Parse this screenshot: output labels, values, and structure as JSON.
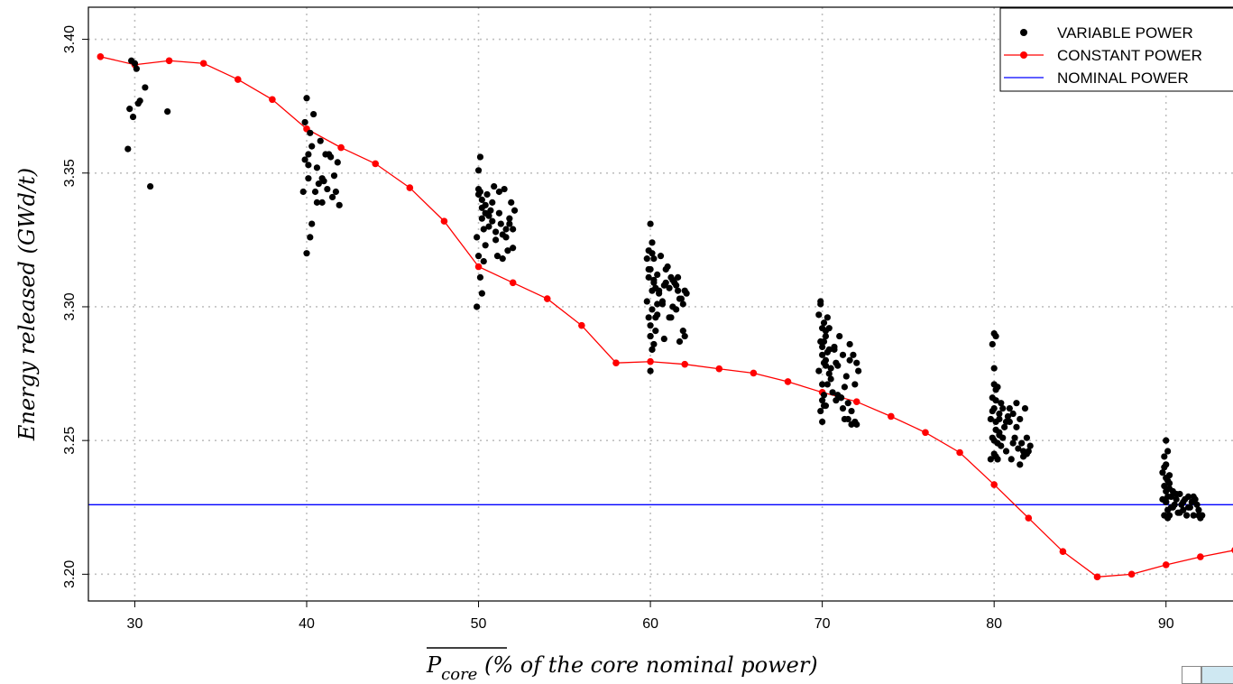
{
  "chart_data": {
    "type": "scatter",
    "xlabel": "P_core (% of the core nominal power)",
    "xlabel_main": "P",
    "xlabel_sub": "core",
    "xlabel_rest": " (% of the core nominal power)",
    "ylabel": "Energy released (GWd/t)",
    "xlim": [
      27.3,
      95
    ],
    "ylim": [
      3.19,
      3.412
    ],
    "x_ticks": [
      30,
      40,
      50,
      60,
      70,
      80,
      90
    ],
    "y_ticks": [
      3.2,
      3.25,
      3.3,
      3.35,
      3.4
    ],
    "x_tick_labels": [
      "30",
      "40",
      "50",
      "60",
      "70",
      "80",
      "90"
    ],
    "y_tick_labels": [
      "3.20",
      "3.25",
      "3.30",
      "3.35",
      "3.40"
    ],
    "grid": true,
    "legend_position": "top-right",
    "legend": [
      "VARIABLE POWER",
      "CONSTANT POWER",
      "NOMINAL POWER"
    ],
    "colors": {
      "variable": "#000000",
      "constant": "#ff0000",
      "nominal": "#0000ff",
      "grid": "#c0c0c0"
    },
    "series": [
      {
        "name": "CONSTANT POWER",
        "type": "line-markers",
        "x": [
          28,
          30,
          32,
          34,
          36,
          38,
          40,
          42,
          44,
          46,
          48,
          50,
          52,
          54,
          56,
          58,
          60,
          62,
          64,
          66,
          68,
          70,
          72,
          74,
          76,
          78,
          80,
          82,
          84,
          86,
          88,
          90,
          92,
          94
        ],
        "y": [
          3.3935,
          3.3905,
          3.392,
          3.391,
          3.385,
          3.3775,
          3.3665,
          3.3595,
          3.3535,
          3.3445,
          3.332,
          3.315,
          3.309,
          3.303,
          3.293,
          3.279,
          3.2795,
          3.2785,
          3.2768,
          3.2752,
          3.272,
          3.268,
          3.2645,
          3.259,
          3.253,
          3.2455,
          3.2335,
          3.221,
          3.2085,
          3.199,
          3.2,
          3.2035,
          3.2065,
          3.209
        ]
      },
      {
        "name": "NOMINAL POWER",
        "type": "hline",
        "y": 3.226
      },
      {
        "name": "VARIABLE POWER",
        "type": "scatter",
        "x": [
          29.6,
          29.7,
          29.8,
          29.9,
          30.0,
          30.1,
          30.2,
          30.3,
          30.6,
          30.9,
          31.9,
          39.8,
          39.9,
          40.0,
          40.0,
          40.1,
          40.1,
          40.2,
          40.2,
          40.3,
          40.4,
          40.5,
          40.6,
          40.7,
          40.8,
          40.9,
          41.0,
          41.1,
          41.2,
          41.4,
          41.5,
          41.6,
          41.7,
          41.9,
          39.9,
          40.1,
          40.3,
          40.6,
          40.9,
          41.3,
          41.8,
          49.9,
          49.9,
          50.0,
          50.0,
          50.0,
          50.1,
          50.1,
          50.1,
          50.2,
          50.2,
          50.2,
          50.3,
          50.3,
          50.4,
          50.4,
          50.5,
          50.6,
          50.7,
          50.8,
          50.9,
          51.0,
          51.1,
          51.2,
          51.3,
          51.4,
          51.5,
          51.6,
          51.7,
          51.8,
          51.9,
          52.0,
          52.1,
          50.0,
          50.2,
          50.4,
          50.6,
          50.8,
          51.0,
          51.2,
          51.4,
          51.6,
          51.8,
          52.0,
          59.8,
          59.8,
          59.9,
          59.9,
          59.9,
          60.0,
          60.0,
          60.0,
          60.0,
          60.1,
          60.1,
          60.1,
          60.1,
          60.2,
          60.2,
          60.2,
          60.3,
          60.3,
          60.4,
          60.4,
          60.5,
          60.6,
          60.7,
          60.8,
          60.9,
          61.0,
          61.1,
          61.2,
          61.3,
          61.4,
          61.5,
          61.6,
          61.7,
          61.8,
          61.9,
          62.0,
          62.1,
          59.9,
          60.0,
          60.1,
          60.2,
          60.3,
          60.5,
          60.7,
          60.9,
          61.1,
          61.3,
          61.5,
          61.7,
          61.9,
          60.0,
          60.1,
          60.4,
          60.8,
          61.2,
          61.6,
          62.0,
          69.8,
          69.8,
          69.9,
          69.9,
          69.9,
          70.0,
          70.0,
          70.0,
          70.0,
          70.1,
          70.1,
          70.1,
          70.1,
          70.2,
          70.2,
          70.2,
          70.3,
          70.3,
          70.4,
          70.4,
          70.5,
          70.6,
          70.7,
          70.8,
          70.9,
          71.0,
          71.1,
          71.2,
          71.3,
          71.4,
          71.5,
          71.6,
          71.7,
          71.8,
          71.9,
          72.0,
          72.1,
          69.9,
          70.0,
          70.1,
          70.2,
          70.3,
          70.5,
          70.7,
          70.9,
          71.1,
          71.3,
          71.5,
          71.7,
          71.9,
          70.0,
          70.2,
          70.4,
          70.8,
          71.2,
          71.6,
          72.0,
          79.8,
          79.8,
          79.9,
          79.9,
          79.9,
          80.0,
          80.0,
          80.0,
          80.0,
          80.1,
          80.1,
          80.1,
          80.1,
          80.2,
          80.2,
          80.2,
          80.3,
          80.3,
          80.4,
          80.4,
          80.5,
          80.6,
          80.7,
          80.8,
          80.9,
          81.0,
          81.1,
          81.2,
          81.3,
          81.4,
          81.5,
          81.6,
          81.7,
          81.8,
          81.9,
          82.0,
          82.1,
          79.9,
          80.0,
          80.1,
          80.2,
          80.3,
          80.5,
          80.7,
          80.9,
          81.1,
          81.3,
          81.5,
          81.7,
          81.9,
          80.0,
          80.1,
          80.3,
          89.8,
          89.8,
          89.9,
          89.9,
          89.9,
          90.0,
          90.0,
          90.0,
          90.0,
          90.1,
          90.1,
          90.1,
          90.1,
          90.2,
          90.2,
          90.2,
          90.3,
          90.3,
          90.4,
          90.5,
          90.6,
          90.7,
          90.8,
          90.9,
          91.0,
          91.1,
          91.2,
          91.3,
          91.4,
          91.5,
          91.6,
          91.7,
          91.8,
          91.9,
          92.0,
          92.1,
          89.9,
          90.0,
          90.1,
          90.2,
          90.4,
          90.6,
          90.8,
          91.0,
          91.3,
          91.6,
          91.9,
          90.0
        ],
        "y": [
          3.359,
          3.374,
          3.392,
          3.371,
          3.391,
          3.389,
          3.376,
          3.377,
          3.382,
          3.345,
          3.373,
          3.343,
          3.369,
          3.378,
          3.32,
          3.357,
          3.353,
          3.326,
          3.365,
          3.331,
          3.372,
          3.343,
          3.339,
          3.346,
          3.362,
          3.348,
          3.347,
          3.357,
          3.344,
          3.356,
          3.341,
          3.349,
          3.343,
          3.338,
          3.355,
          3.348,
          3.36,
          3.352,
          3.339,
          3.357,
          3.354,
          3.3,
          3.326,
          3.342,
          3.351,
          3.319,
          3.356,
          3.311,
          3.343,
          3.305,
          3.333,
          3.337,
          3.317,
          3.329,
          3.338,
          3.323,
          3.342,
          3.33,
          3.336,
          3.332,
          3.345,
          3.328,
          3.319,
          3.335,
          3.331,
          3.318,
          3.344,
          3.326,
          3.321,
          3.333,
          3.339,
          3.322,
          3.336,
          3.344,
          3.34,
          3.335,
          3.334,
          3.339,
          3.325,
          3.343,
          3.327,
          3.329,
          3.331,
          3.329,
          3.318,
          3.302,
          3.311,
          3.321,
          3.296,
          3.331,
          3.276,
          3.289,
          3.314,
          3.284,
          3.306,
          3.324,
          3.299,
          3.318,
          3.286,
          3.309,
          3.307,
          3.291,
          3.312,
          3.297,
          3.305,
          3.319,
          3.301,
          3.288,
          3.309,
          3.315,
          3.296,
          3.311,
          3.3,
          3.309,
          3.299,
          3.306,
          3.287,
          3.303,
          3.291,
          3.306,
          3.305,
          3.314,
          3.293,
          3.32,
          3.31,
          3.296,
          3.306,
          3.302,
          3.314,
          3.307,
          3.31,
          3.308,
          3.303,
          3.301,
          3.289,
          3.284,
          3.301,
          3.308,
          3.296,
          3.311,
          3.289,
          3.297,
          3.276,
          3.261,
          3.287,
          3.301,
          3.292,
          3.257,
          3.271,
          3.282,
          3.267,
          3.287,
          3.294,
          3.279,
          3.263,
          3.278,
          3.289,
          3.271,
          3.283,
          3.275,
          3.292,
          3.277,
          3.268,
          3.285,
          3.279,
          3.267,
          3.289,
          3.266,
          3.282,
          3.258,
          3.274,
          3.264,
          3.286,
          3.261,
          3.282,
          3.257,
          3.279,
          3.276,
          3.302,
          3.285,
          3.263,
          3.28,
          3.296,
          3.273,
          3.284,
          3.278,
          3.266,
          3.27,
          3.258,
          3.256,
          3.271,
          3.265,
          3.291,
          3.284,
          3.265,
          3.262,
          3.28,
          3.256,
          3.258,
          3.243,
          3.266,
          3.286,
          3.251,
          3.262,
          3.245,
          3.277,
          3.271,
          3.254,
          3.265,
          3.289,
          3.257,
          3.249,
          3.27,
          3.243,
          3.26,
          3.252,
          3.264,
          3.248,
          3.262,
          3.255,
          3.246,
          3.259,
          3.257,
          3.243,
          3.26,
          3.251,
          3.264,
          3.247,
          3.258,
          3.249,
          3.244,
          3.262,
          3.251,
          3.246,
          3.248,
          3.261,
          3.29,
          3.269,
          3.243,
          3.258,
          3.251,
          3.257,
          3.262,
          3.249,
          3.255,
          3.241,
          3.246,
          3.245,
          3.25,
          3.244,
          3.253,
          3.228,
          3.238,
          3.244,
          3.222,
          3.233,
          3.25,
          3.227,
          3.241,
          3.236,
          3.229,
          3.224,
          3.246,
          3.235,
          3.232,
          3.222,
          3.237,
          3.229,
          3.225,
          3.231,
          3.226,
          3.228,
          3.223,
          3.23,
          3.226,
          3.224,
          3.228,
          3.222,
          3.229,
          3.225,
          3.227,
          3.222,
          3.228,
          3.226,
          3.224,
          3.221,
          3.222,
          3.24,
          3.231,
          3.221,
          3.234,
          3.225,
          3.23,
          3.223,
          3.227,
          3.225,
          3.229,
          3.222,
          3.227
        ]
      }
    ]
  }
}
